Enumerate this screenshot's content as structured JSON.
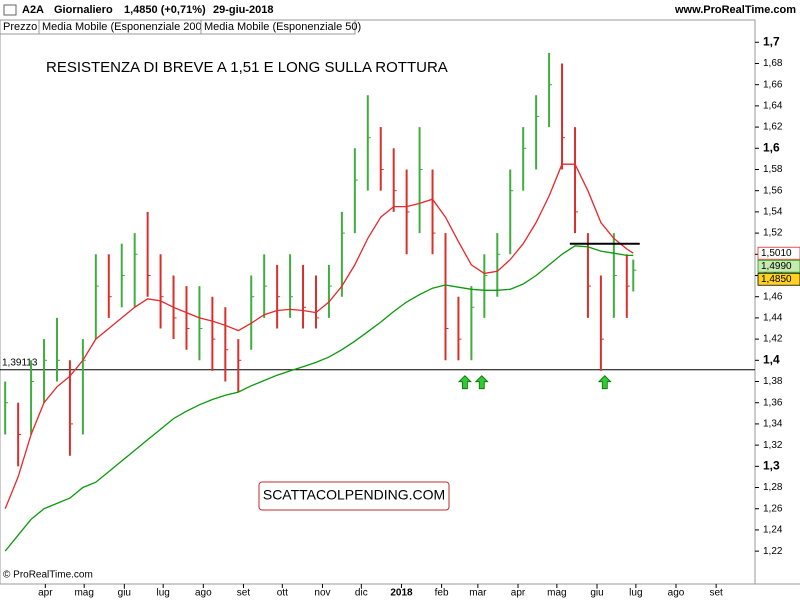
{
  "chart_data": {
    "type": "ohlc",
    "header": {
      "symbol": "A2A",
      "period": "Giornaliero",
      "quote": "1,4850 (+0,71%)",
      "date": "29-giu-2018",
      "site": "www.ProRealTime.com"
    },
    "title": "RESISTENZA DI BREVE A 1,51 E LONG SULLA ROTTURA",
    "watermark": "SCATTACOLPENDING.COM",
    "copyright": "© ProRealTime.com",
    "price": {
      "name": "Prezzo",
      "up_color": "#3fae3f",
      "down_color": "#d9302c",
      "x": [
        0,
        10,
        20,
        30,
        40,
        50,
        60,
        70,
        80,
        90,
        100,
        110,
        120,
        130,
        140,
        150,
        160,
        170,
        180,
        190,
        200,
        210,
        220,
        230,
        240,
        250,
        260,
        270,
        280,
        290,
        300,
        310,
        320,
        330,
        340,
        350,
        360,
        370,
        380,
        390,
        400,
        410,
        420,
        430,
        440,
        450,
        460,
        470,
        480,
        485
      ],
      "high": [
        1.38,
        1.36,
        1.4,
        1.42,
        1.44,
        1.4,
        1.42,
        1.5,
        1.5,
        1.51,
        1.52,
        1.54,
        1.5,
        1.48,
        1.47,
        1.47,
        1.46,
        1.45,
        1.42,
        1.48,
        1.5,
        1.49,
        1.5,
        1.49,
        1.48,
        1.49,
        1.54,
        1.6,
        1.65,
        1.62,
        1.6,
        1.58,
        1.62,
        1.58,
        1.52,
        1.46,
        1.47,
        1.5,
        1.52,
        1.58,
        1.62,
        1.65,
        1.69,
        1.68,
        1.62,
        1.52,
        1.48,
        1.52,
        1.5,
        1.495
      ],
      "low": [
        1.33,
        1.3,
        1.33,
        1.36,
        1.38,
        1.31,
        1.33,
        1.42,
        1.44,
        1.45,
        1.45,
        1.46,
        1.43,
        1.42,
        1.41,
        1.4,
        1.39,
        1.38,
        1.37,
        1.41,
        1.44,
        1.43,
        1.44,
        1.43,
        1.43,
        1.44,
        1.46,
        1.52,
        1.56,
        1.56,
        1.54,
        1.5,
        1.52,
        1.5,
        1.4,
        1.4,
        1.4,
        1.44,
        1.46,
        1.5,
        1.56,
        1.58,
        1.62,
        1.58,
        1.52,
        1.44,
        1.39,
        1.44,
        1.44,
        1.465
      ],
      "close": [
        1.36,
        1.33,
        1.38,
        1.4,
        1.4,
        1.34,
        1.4,
        1.47,
        1.46,
        1.48,
        1.5,
        1.48,
        1.46,
        1.44,
        1.43,
        1.43,
        1.42,
        1.41,
        1.4,
        1.46,
        1.47,
        1.46,
        1.46,
        1.45,
        1.44,
        1.47,
        1.52,
        1.57,
        1.61,
        1.58,
        1.56,
        1.54,
        1.58,
        1.52,
        1.43,
        1.42,
        1.45,
        1.48,
        1.5,
        1.56,
        1.6,
        1.63,
        1.66,
        1.61,
        1.54,
        1.47,
        1.42,
        1.48,
        1.47,
        1.485
      ],
      "value_label": "1,4850",
      "label_color": "#ffd21f"
    },
    "series": [
      {
        "name": "Media Mobile (Esponenziale 200)",
        "color": "#0a9a0a",
        "label_color": "#c7eab0",
        "value_label": "1,4990",
        "values": [
          1.22,
          1.235,
          1.25,
          1.26,
          1.265,
          1.27,
          1.28,
          1.285,
          1.295,
          1.305,
          1.315,
          1.325,
          1.335,
          1.345,
          1.352,
          1.358,
          1.363,
          1.367,
          1.37,
          1.376,
          1.381,
          1.386,
          1.39,
          1.394,
          1.398,
          1.403,
          1.41,
          1.418,
          1.427,
          1.436,
          1.446,
          1.455,
          1.462,
          1.468,
          1.471,
          1.469,
          1.467,
          1.466,
          1.466,
          1.467,
          1.472,
          1.48,
          1.49,
          1.5,
          1.508,
          1.507,
          1.503,
          1.501,
          1.499,
          1.499
        ]
      },
      {
        "name": "Media Mobile (Esponenziale 50)",
        "color": "#e8282a",
        "label_color": "#ffffff",
        "value_label": "1,5010",
        "values": [
          1.26,
          1.29,
          1.33,
          1.36,
          1.375,
          1.385,
          1.4,
          1.42,
          1.43,
          1.44,
          1.45,
          1.458,
          1.456,
          1.45,
          1.445,
          1.44,
          1.437,
          1.433,
          1.428,
          1.435,
          1.443,
          1.447,
          1.448,
          1.447,
          1.445,
          1.455,
          1.47,
          1.49,
          1.515,
          1.535,
          1.545,
          1.545,
          1.548,
          1.552,
          1.535,
          1.512,
          1.49,
          1.482,
          1.484,
          1.495,
          1.51,
          1.53,
          1.555,
          1.585,
          1.585,
          1.56,
          1.53,
          1.515,
          1.505,
          1.501
        ]
      }
    ],
    "support": {
      "value": 1.39113,
      "label": "1,39113"
    },
    "resistance": {
      "value": 1.51,
      "x": [
        436,
        490
      ]
    },
    "arrows": [
      355,
      368,
      463
    ],
    "xlim": [
      -4,
      579
    ],
    "ylim": [
      1.189,
      1.721
    ],
    "xticks": [
      {
        "value": 31,
        "label": "apr"
      },
      {
        "value": 61,
        "label": "mag"
      },
      {
        "value": 92,
        "label": "giu"
      },
      {
        "value": 122,
        "label": "lug"
      },
      {
        "value": 153,
        "label": "ago"
      },
      {
        "value": 184,
        "label": "set"
      },
      {
        "value": 214,
        "label": "ott"
      },
      {
        "value": 245,
        "label": "nov"
      },
      {
        "value": 275,
        "label": "dic"
      },
      {
        "value": 306,
        "label": "2018"
      },
      {
        "value": 337,
        "label": "feb"
      },
      {
        "value": 365,
        "label": "mar"
      },
      {
        "value": 396,
        "label": "apr"
      },
      {
        "value": 426,
        "label": "mag"
      },
      {
        "value": 457,
        "label": "giu"
      },
      {
        "value": 487,
        "label": "lug"
      },
      {
        "value": 518,
        "label": "ago"
      },
      {
        "value": 549,
        "label": "set"
      }
    ],
    "yticks": [
      {
        "value": 1.22,
        "label": "1,22"
      },
      {
        "value": 1.24,
        "label": "1,24"
      },
      {
        "value": 1.26,
        "label": "1,26"
      },
      {
        "value": 1.28,
        "label": "1,28"
      },
      {
        "value": 1.3,
        "label": "1,3"
      },
      {
        "value": 1.32,
        "label": "1,32"
      },
      {
        "value": 1.34,
        "label": "1,34"
      },
      {
        "value": 1.36,
        "label": "1,36"
      },
      {
        "value": 1.38,
        "label": "1,38"
      },
      {
        "value": 1.4,
        "label": "1,4"
      },
      {
        "value": 1.42,
        "label": "1,42"
      },
      {
        "value": 1.44,
        "label": "1,44"
      },
      {
        "value": 1.46,
        "label": "1,46"
      },
      {
        "value": 1.48,
        "label": "1,48"
      },
      {
        "value": 1.5,
        "label": "1,5"
      },
      {
        "value": 1.52,
        "label": "1,52"
      },
      {
        "value": 1.54,
        "label": "1,54"
      },
      {
        "value": 1.56,
        "label": "1,56"
      },
      {
        "value": 1.58,
        "label": "1,58"
      },
      {
        "value": 1.6,
        "label": "1,6"
      },
      {
        "value": 1.62,
        "label": "1,62"
      },
      {
        "value": 1.64,
        "label": "1,64"
      },
      {
        "value": 1.66,
        "label": "1,66"
      },
      {
        "value": 1.68,
        "label": "1,68"
      },
      {
        "value": 1.7,
        "label": "1,7"
      }
    ]
  }
}
